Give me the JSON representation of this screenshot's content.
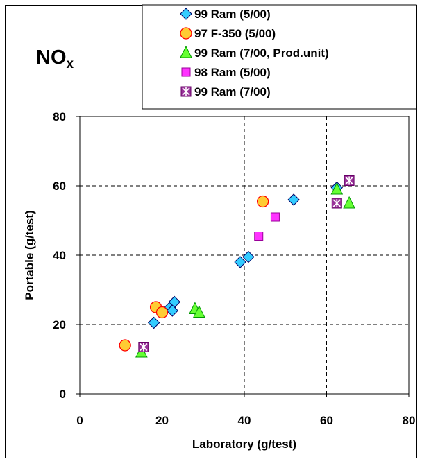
{
  "chart_data": {
    "type": "scatter",
    "title": "NO",
    "title_subscript": "x",
    "xlabel": "Laboratory (g/test)",
    "ylabel": "Portable (g/test)",
    "xlim": [
      0,
      80
    ],
    "ylim": [
      0,
      80
    ],
    "x_ticks": [
      "0",
      "20",
      "40",
      "60",
      "80"
    ],
    "y_ticks": [
      "0",
      "20",
      "40",
      "60",
      "80"
    ],
    "grid": true,
    "legend_position": "top-right",
    "series": [
      {
        "name": "99 Ram (5/00)",
        "marker": "diamond",
        "color": "#33ccff",
        "points": [
          [
            18,
            20.5
          ],
          [
            22,
            25
          ],
          [
            23,
            26.5
          ],
          [
            22.5,
            24
          ],
          [
            39,
            38
          ],
          [
            41,
            39.5
          ],
          [
            52,
            56
          ],
          [
            62.5,
            59.5
          ]
        ]
      },
      {
        "name": "97 F-350 (5/00)",
        "marker": "circle",
        "color": "#ffcc33",
        "points": [
          [
            11,
            14
          ],
          [
            18.5,
            25
          ],
          [
            20,
            23.5
          ],
          [
            44.5,
            55.5
          ]
        ]
      },
      {
        "name": "99 Ram (7/00, Prod.unit)",
        "marker": "triangle",
        "color": "#66ff33",
        "points": [
          [
            15,
            12
          ],
          [
            28,
            24.5
          ],
          [
            29,
            23.5
          ],
          [
            62.5,
            59
          ],
          [
            65.5,
            55
          ]
        ]
      },
      {
        "name": "98 Ram (5/00)",
        "marker": "square",
        "color": "#ff33ff",
        "points": [
          [
            43.5,
            45.5
          ],
          [
            47.5,
            51
          ]
        ]
      },
      {
        "name": "99 Ram (7/00)",
        "marker": "square-star",
        "color": "#993399",
        "points": [
          [
            15.5,
            13.5
          ],
          [
            62.5,
            55
          ],
          [
            65.5,
            61.5
          ]
        ]
      }
    ]
  }
}
